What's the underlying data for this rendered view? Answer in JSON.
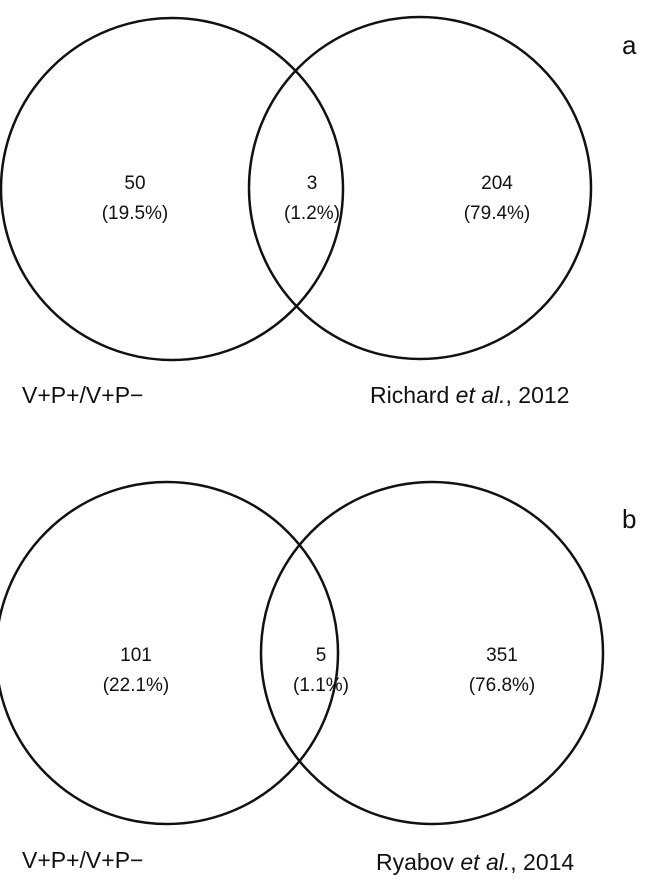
{
  "panels": [
    {
      "panel_label": "a",
      "left_set_label": "V+P+/V+P−",
      "right_set_label": {
        "author": "Richard ",
        "etal": "et al.",
        "year": ", 2012"
      },
      "regions": {
        "left_only": {
          "count": "50",
          "percent": "(19.5%)"
        },
        "overlap": {
          "count": "3",
          "percent": "(1.2%)"
        },
        "right_only": {
          "count": "204",
          "percent": "(79.4%)"
        }
      }
    },
    {
      "panel_label": "b",
      "left_set_label": "V+P+/V+P−",
      "right_set_label": {
        "author": "Ryabov ",
        "etal": "et al.",
        "year": ", 2014"
      },
      "regions": {
        "left_only": {
          "count": "101",
          "percent": "(22.1%)"
        },
        "overlap": {
          "count": "5",
          "percent": "(1.1%)"
        },
        "right_only": {
          "count": "351",
          "percent": "(76.8%)"
        }
      }
    }
  ]
}
